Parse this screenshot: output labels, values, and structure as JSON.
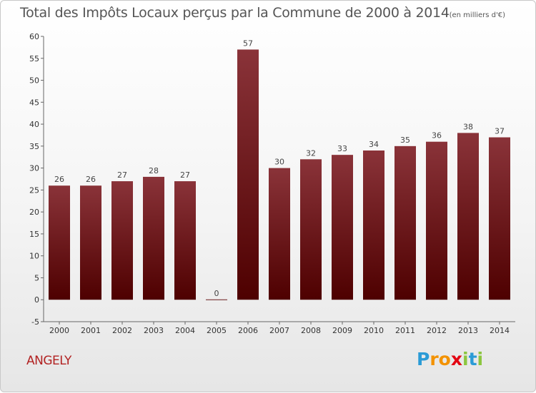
{
  "chart_data": {
    "type": "bar",
    "title": "Total des Impôts Locaux perçus par la Commune de 2000 à 2014",
    "unit": "(en milliers d'€)",
    "categories": [
      "2000",
      "2001",
      "2002",
      "2003",
      "2004",
      "2005",
      "2006",
      "2007",
      "2008",
      "2009",
      "2010",
      "2011",
      "2012",
      "2013",
      "2014"
    ],
    "values": [
      26,
      26,
      27,
      28,
      27,
      0,
      57,
      30,
      32,
      33,
      34,
      35,
      36,
      38,
      37
    ],
    "ylim": [
      -5,
      60
    ],
    "yticks": [
      -5,
      0,
      5,
      10,
      15,
      20,
      25,
      30,
      35,
      40,
      45,
      50,
      55,
      60
    ],
    "grid": false,
    "bar_color_top": "#8a3339",
    "bar_color_bottom": "#4e0000"
  },
  "commune": "ANGELY",
  "logo": {
    "letters": [
      "P",
      "r",
      "o",
      "x",
      "i",
      "t",
      "i"
    ],
    "colors": [
      "#2b9bd6",
      "#f39200",
      "#f39200",
      "#e30613",
      "#8cc63f",
      "#2b9bd6",
      "#8cc63f"
    ]
  }
}
